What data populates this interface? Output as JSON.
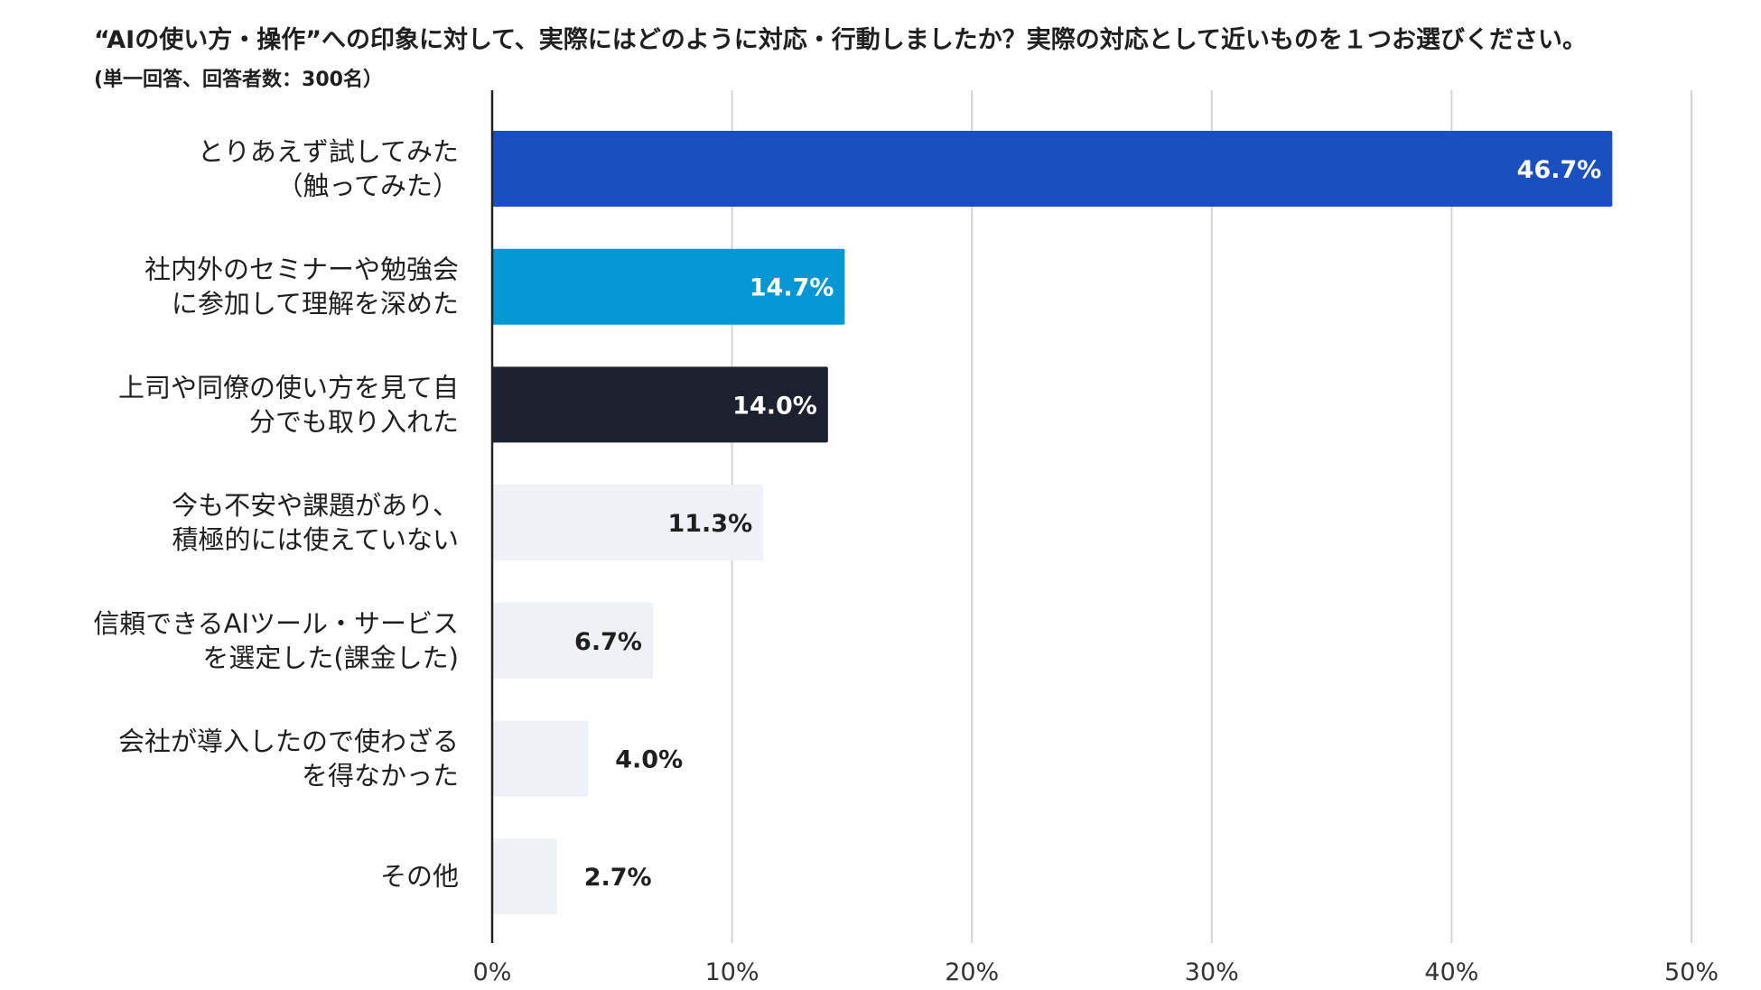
{
  "title": "“AIの使い方・操作”への印象に対して、実際にはどのように対応・行動しましたか？実際の対応として近いものを１つお選びください。",
  "subtitle": "(単一回答、回答者数：300名）",
  "chart_data": {
    "type": "bar",
    "orientation": "horizontal",
    "categories": [
      [
        "とりあえず試してみた",
        "（触ってみた）"
      ],
      [
        "社内外のセミナーや勉強会",
        "に参加して理解を深めた"
      ],
      [
        "上司や同僚の使い方を見て自",
        "分でも取り入れた"
      ],
      [
        "今も不安や課題があり、",
        "積極的には使えていない"
      ],
      [
        "信頼できるAIツール・サービス",
        "を選定した(課金した)"
      ],
      [
        "会社が導入したので使わざる",
        "を得なかった"
      ],
      [
        "その他"
      ]
    ],
    "values": [
      46.7,
      14.7,
      14.0,
      11.3,
      6.7,
      4.0,
      2.7
    ],
    "value_labels": [
      "46.7%",
      "14.7%",
      "14.0%",
      "11.3%",
      "6.7%",
      "4.0%",
      "2.7%"
    ],
    "xlim": [
      0,
      50
    ],
    "x_ticks": [
      0,
      10,
      20,
      30,
      40,
      50
    ],
    "x_tick_labels": [
      "0%",
      "10%",
      "20%",
      "30%",
      "40%",
      "50%"
    ],
    "grid": true,
    "bar_colors": [
      "#1a4fc0",
      "#0597d4",
      "#1c2130",
      "#eef1f6",
      "#eef1f6",
      "#eef1f6",
      "#eef1f6"
    ],
    "label_colors": [
      "#ffffff",
      "#ffffff",
      "#ffffff",
      "#1f1f1f",
      "#1f1f1f",
      "#1f1f1f",
      "#1f1f1f"
    ],
    "grid_color": "#d4d4d4",
    "axis_color": "#222222"
  }
}
